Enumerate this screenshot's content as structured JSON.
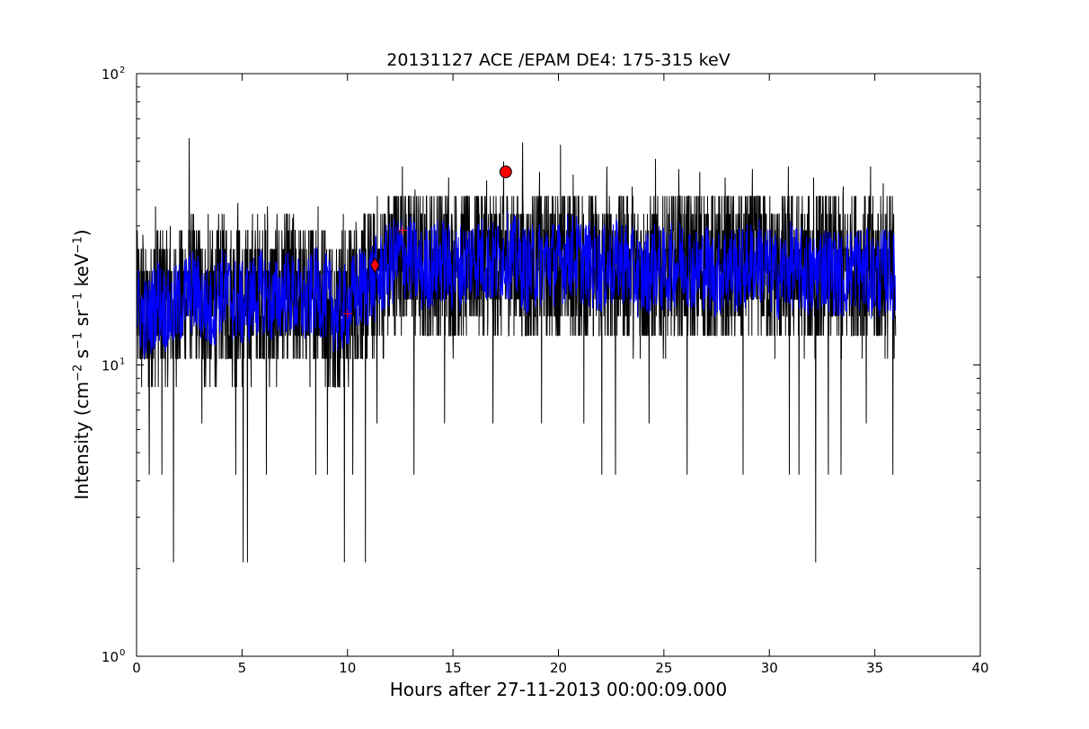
{
  "chart_data": {
    "type": "line",
    "title": "20131127 ACE /EPAM DE4: 175-315 keV",
    "xlabel": "Hours after 27-11-2013 00:00:09.000",
    "ylabel": {
      "prefix": "Intensity (cm",
      "parts": [
        {
          "sup": "−2",
          "text": " s"
        },
        {
          "sup": "−1",
          "text": " sr"
        },
        {
          "sup": "−1",
          "text": " keV"
        },
        {
          "sup": "−1",
          "text": ")"
        }
      ]
    },
    "xlim": [
      0,
      40
    ],
    "ylim": [
      1,
      100
    ],
    "yscale": "log",
    "x_ticks": [
      0,
      5,
      10,
      15,
      20,
      25,
      30,
      35,
      40
    ],
    "x_tick_labels": [
      "0",
      "5",
      "10",
      "15",
      "20",
      "25",
      "30",
      "35",
      "40"
    ],
    "y_major_ticks": [
      1,
      10,
      100
    ],
    "y_tick_labels": [
      {
        "base": "10",
        "exp": "0"
      },
      {
        "base": "10",
        "exp": "1"
      },
      {
        "base": "10",
        "exp": "2"
      }
    ],
    "grid": false,
    "series": [
      {
        "color": "#000000",
        "x": [
          0,
          0.5,
          1,
          1.5,
          2,
          2.5,
          3,
          3.5,
          4,
          4.5,
          5,
          5.5,
          6,
          6.5,
          7,
          7.5,
          8,
          8.5,
          9,
          9.5,
          10,
          10.5,
          11,
          11.5,
          12,
          12.5,
          13,
          13.5,
          14,
          14.5,
          15,
          15.5,
          16,
          16.5,
          17,
          17.5,
          18,
          18.5,
          19,
          19.5,
          20,
          20.5,
          21,
          21.5,
          22,
          22.5,
          23,
          23.5,
          24,
          24.5,
          25,
          25.5,
          26,
          26.5,
          27,
          27.5,
          28,
          28.5,
          29,
          29.5,
          30,
          30.5,
          31,
          31.5,
          32,
          32.5,
          33,
          33.5,
          34,
          34.5,
          35,
          35.5,
          36
        ],
        "y": [
          16,
          14,
          17,
          15,
          16,
          18,
          17,
          15,
          18,
          17,
          16,
          17,
          18,
          16,
          18,
          17,
          16,
          18,
          17,
          15,
          16,
          18,
          19,
          20,
          22,
          24,
          23,
          21,
          22,
          23,
          21,
          22,
          24,
          23,
          22,
          24,
          23,
          21,
          22,
          23,
          22,
          24,
          23,
          22,
          21,
          22,
          23,
          21,
          20,
          22,
          21,
          22,
          23,
          21,
          22,
          20,
          22,
          21,
          22,
          23,
          21,
          20,
          22,
          21,
          20,
          22,
          21,
          20,
          22,
          21,
          20,
          21,
          20
        ],
        "spikes_high": [
          [
            0.3,
            28
          ],
          [
            0.9,
            35
          ],
          [
            1.6,
            30
          ],
          [
            2.5,
            60
          ],
          [
            3.4,
            33
          ],
          [
            4.1,
            29
          ],
          [
            4.8,
            36
          ],
          [
            5.5,
            33
          ],
          [
            6.2,
            35
          ],
          [
            7.4,
            32
          ],
          [
            8.6,
            35
          ],
          [
            9.8,
            33
          ],
          [
            10.4,
            31
          ],
          [
            11.1,
            32
          ],
          [
            12.6,
            48
          ],
          [
            13.2,
            40
          ],
          [
            14.8,
            44
          ],
          [
            16.6,
            43
          ],
          [
            17.4,
            50
          ],
          [
            18.3,
            58
          ],
          [
            19.1,
            46
          ],
          [
            20.1,
            57
          ],
          [
            20.7,
            45
          ],
          [
            22.3,
            48
          ],
          [
            23.5,
            41
          ],
          [
            24.6,
            51
          ],
          [
            25.7,
            47
          ],
          [
            26.7,
            46
          ],
          [
            27.9,
            44
          ],
          [
            29.2,
            47
          ],
          [
            30.9,
            48
          ],
          [
            32.1,
            44
          ],
          [
            33.5,
            41
          ],
          [
            34.8,
            48
          ],
          [
            35.4,
            42
          ]
        ],
        "spikes_low": [
          [
            0.6,
            4.2
          ],
          [
            1.2,
            4.2
          ],
          [
            1.75,
            2.1
          ],
          [
            3.1,
            6.3
          ],
          [
            4.7,
            4.2
          ],
          [
            5.05,
            2.1
          ],
          [
            5.25,
            2.1
          ],
          [
            6.15,
            4.2
          ],
          [
            8.5,
            4.2
          ],
          [
            9.05,
            4.2
          ],
          [
            9.85,
            2.1
          ],
          [
            10.25,
            4.2
          ],
          [
            10.85,
            2.1
          ],
          [
            11.4,
            6.3
          ],
          [
            13.15,
            4.2
          ],
          [
            14.6,
            6.3
          ],
          [
            16.9,
            6.3
          ],
          [
            19.2,
            6.3
          ],
          [
            21.2,
            6.3
          ],
          [
            22.05,
            4.2
          ],
          [
            22.7,
            4.2
          ],
          [
            24.3,
            6.3
          ],
          [
            26.1,
            4.2
          ],
          [
            28.75,
            4.2
          ],
          [
            30.95,
            4.2
          ],
          [
            31.4,
            4.2
          ],
          [
            32.2,
            2.1
          ],
          [
            32.8,
            4.2
          ],
          [
            33.4,
            4.2
          ],
          [
            34.6,
            6.3
          ],
          [
            35.85,
            4.2
          ]
        ]
      },
      {
        "color": "#0000ff",
        "x": [
          0,
          0.5,
          1,
          1.5,
          2,
          2.5,
          3,
          3.5,
          4,
          4.5,
          5,
          5.5,
          6,
          6.5,
          7,
          7.5,
          8,
          8.5,
          9,
          9.5,
          10,
          10.5,
          11,
          11.5,
          12,
          12.5,
          13,
          13.5,
          14,
          14.5,
          15,
          15.5,
          16,
          16.5,
          17,
          17.5,
          18,
          18.5,
          19,
          19.5,
          20,
          20.5,
          21,
          21.5,
          22,
          22.5,
          23,
          23.5,
          24,
          24.5,
          25,
          25.5,
          26,
          26.5,
          27,
          27.5,
          28,
          28.5,
          29,
          29.5,
          30,
          30.5,
          31,
          31.5,
          32,
          32.5,
          33,
          33.5,
          34,
          34.5,
          35,
          35.5,
          36
        ],
        "y": [
          16,
          14,
          17,
          15,
          16,
          18,
          17,
          15,
          18,
          17,
          16,
          17,
          18,
          16,
          18,
          17,
          16,
          18,
          17,
          15,
          16,
          18,
          19,
          20,
          22,
          24,
          23,
          21,
          22,
          23,
          21,
          22,
          24,
          23,
          22,
          24,
          23,
          21,
          22,
          23,
          22,
          24,
          23,
          22,
          21,
          22,
          23,
          21,
          20,
          22,
          21,
          22,
          23,
          21,
          22,
          20,
          22,
          21,
          22,
          23,
          21,
          20,
          22,
          21,
          20,
          22,
          21,
          20,
          22,
          21,
          20,
          21,
          20
        ]
      }
    ],
    "markers": [
      {
        "shape": "circle",
        "x": 17.5,
        "y": 46,
        "color": "#ff0000"
      },
      {
        "shape": "diamond",
        "x": 11.3,
        "y": 22,
        "color": "#ff0000"
      },
      {
        "shape": "plus",
        "x": 10.0,
        "y": 15,
        "color": "#ff0000"
      },
      {
        "shape": "plus",
        "x": 12.6,
        "y": 29,
        "color": "#ff0000"
      }
    ]
  }
}
